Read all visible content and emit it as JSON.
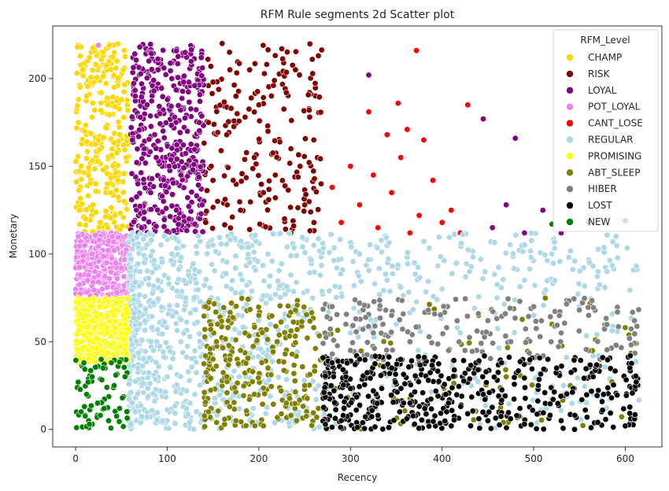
{
  "chart_data": {
    "type": "scatter",
    "title": "RFM Rule segments 2d Scatter plot",
    "xlabel": "Recency",
    "ylabel": "Monetary",
    "xlim": [
      -25,
      640
    ],
    "ylim": [
      -10,
      230
    ],
    "xticks": [
      0,
      100,
      200,
      300,
      400,
      500,
      600
    ],
    "yticks": [
      0,
      50,
      100,
      150,
      200
    ],
    "grid": false,
    "legend": {
      "title": "RFM_Level",
      "placement": "top-right"
    },
    "series": [
      {
        "name": "CHAMP",
        "color": "#FFD700",
        "region": {
          "x": [
            0,
            58
          ],
          "y": [
            112,
            220
          ]
        },
        "points": [
          [
            2,
            218
          ],
          [
            8,
            205
          ],
          [
            15,
            212
          ],
          [
            22,
            208
          ],
          [
            30,
            215
          ],
          [
            37,
            219
          ],
          [
            45,
            210
          ],
          [
            52,
            205
          ],
          [
            5,
            195
          ],
          [
            12,
            190
          ],
          [
            20,
            198
          ],
          [
            28,
            192
          ],
          [
            35,
            185
          ],
          [
            42,
            195
          ],
          [
            50,
            188
          ],
          [
            3,
            175
          ],
          [
            10,
            170
          ],
          [
            18,
            178
          ],
          [
            25,
            165
          ],
          [
            33,
            172
          ],
          [
            40,
            160
          ],
          [
            48,
            168
          ],
          [
            55,
            155
          ],
          [
            6,
            150
          ],
          [
            14,
            145
          ],
          [
            22,
            140
          ],
          [
            30,
            148
          ],
          [
            38,
            135
          ],
          [
            46,
            142
          ],
          [
            53,
            130
          ],
          [
            4,
            125
          ],
          [
            11,
            120
          ],
          [
            19,
            128
          ],
          [
            27,
            118
          ],
          [
            35,
            115
          ],
          [
            43,
            122
          ],
          [
            51,
            116
          ]
        ]
      },
      {
        "name": "RISK",
        "color": "#800000",
        "region": {
          "x": [
            140,
            270
          ],
          "y": [
            112,
            220
          ]
        },
        "points": [
          [
            160,
            220
          ],
          [
            168,
            215
          ],
          [
            190,
            205
          ],
          [
            225,
            217
          ],
          [
            240,
            205
          ],
          [
            265,
            213
          ],
          [
            150,
            198
          ],
          [
            175,
            190
          ],
          [
            200,
            185
          ],
          [
            230,
            192
          ],
          [
            255,
            182
          ],
          [
            145,
            175
          ],
          [
            165,
            168
          ],
          [
            185,
            178
          ],
          [
            210,
            170
          ],
          [
            235,
            160
          ],
          [
            260,
            165
          ],
          [
            148,
            150
          ],
          [
            172,
            142
          ],
          [
            195,
            155
          ],
          [
            218,
            145
          ],
          [
            245,
            150
          ],
          [
            268,
            140
          ],
          [
            155,
            130
          ],
          [
            180,
            125
          ],
          [
            205,
            135
          ],
          [
            228,
            120
          ],
          [
            250,
            128
          ],
          [
            142,
            118
          ],
          [
            190,
            114
          ],
          [
            238,
            116
          ]
        ]
      },
      {
        "name": "LOYAL",
        "color": "#800080",
        "region": {
          "x": [
            60,
            140
          ],
          "y": [
            112,
            220
          ]
        },
        "points": [
          [
            70,
            218
          ],
          [
            80,
            210
          ],
          [
            90,
            205
          ],
          [
            105,
            200
          ],
          [
            118,
            198
          ],
          [
            130,
            196
          ],
          [
            65,
            190
          ],
          [
            78,
            185
          ],
          [
            92,
            180
          ],
          [
            108,
            178
          ],
          [
            122,
            170
          ],
          [
            135,
            175
          ],
          [
            62,
            165
          ],
          [
            75,
            160
          ],
          [
            88,
            155
          ],
          [
            102,
            150
          ],
          [
            115,
            145
          ],
          [
            128,
            148
          ],
          [
            68,
            140
          ],
          [
            82,
            135
          ],
          [
            96,
            130
          ],
          [
            110,
            125
          ],
          [
            124,
            120
          ],
          [
            138,
            128
          ],
          [
            72,
            115
          ],
          [
            100,
            113
          ],
          [
            130,
            117
          ],
          [
            320,
            202
          ],
          [
            445,
            177
          ],
          [
            480,
            166
          ],
          [
            470,
            128
          ],
          [
            510,
            125
          ],
          [
            560,
            118
          ],
          [
            600,
            119
          ],
          [
            455,
            115
          ],
          [
            490,
            112
          ],
          [
            530,
            112
          ]
        ]
      },
      {
        "name": "POT_LOYAL",
        "color": "#EE82EE",
        "region": {
          "x": [
            0,
            58
          ],
          "y": [
            75,
            112
          ]
        },
        "points": [
          [
            25,
            219
          ],
          [
            3,
            110
          ],
          [
            10,
            105
          ],
          [
            18,
            100
          ],
          [
            26,
            108
          ],
          [
            34,
            95
          ],
          [
            42,
            102
          ],
          [
            50,
            92
          ],
          [
            5,
            88
          ],
          [
            13,
            85
          ],
          [
            21,
            90
          ],
          [
            29,
            80
          ],
          [
            37,
            86
          ],
          [
            45,
            78
          ],
          [
            53,
            82
          ],
          [
            8,
            96
          ],
          [
            16,
            76
          ],
          [
            40,
            110
          ],
          [
            55,
            100
          ]
        ]
      },
      {
        "name": "CANT_LOSE",
        "color": "#FF0000",
        "region": {
          "x": [
            270,
            430
          ],
          "y": [
            110,
            190
          ]
        },
        "points": [
          [
            372,
            216
          ],
          [
            352,
            186
          ],
          [
            362,
            171
          ],
          [
            428,
            185
          ],
          [
            320,
            181
          ],
          [
            340,
            168
          ],
          [
            380,
            165
          ],
          [
            300,
            150
          ],
          [
            325,
            145
          ],
          [
            355,
            155
          ],
          [
            390,
            142
          ],
          [
            280,
            138
          ],
          [
            310,
            128
          ],
          [
            345,
            135
          ],
          [
            375,
            122
          ],
          [
            410,
            125
          ],
          [
            290,
            118
          ],
          [
            330,
            115
          ],
          [
            365,
            112
          ],
          [
            400,
            118
          ],
          [
            420,
            112
          ]
        ]
      },
      {
        "name": "REGULAR",
        "color": "#ADD8E6",
        "region": {
          "x": [
            58,
            615
          ],
          "y": [
            0,
            112
          ]
        },
        "points": [
          [
            62,
            108
          ],
          [
            75,
            95
          ],
          [
            90,
            85
          ],
          [
            105,
            100
          ],
          [
            120,
            75
          ],
          [
            135,
            90
          ],
          [
            150,
            105
          ],
          [
            170,
            80
          ],
          [
            190,
            95
          ],
          [
            210,
            100
          ],
          [
            235,
            88
          ],
          [
            260,
            105
          ],
          [
            285,
            92
          ],
          [
            310,
            100
          ],
          [
            340,
            85
          ],
          [
            370,
            95
          ],
          [
            400,
            80
          ],
          [
            430,
            90
          ],
          [
            460,
            75
          ],
          [
            490,
            85
          ],
          [
            520,
            100
          ],
          [
            550,
            70
          ],
          [
            580,
            90
          ],
          [
            612,
            93
          ],
          [
            70,
            60
          ],
          [
            85,
            45
          ],
          [
            100,
            30
          ],
          [
            115,
            50
          ],
          [
            130,
            20
          ],
          [
            65,
            10
          ],
          [
            95,
            5
          ],
          [
            125,
            15
          ],
          [
            145,
            40
          ],
          [
            300,
            55
          ],
          [
            350,
            60
          ],
          [
            420,
            55
          ],
          [
            500,
            65
          ],
          [
            590,
            110
          ]
        ]
      },
      {
        "name": "PROMISING",
        "color": "#FFFF00",
        "region": {
          "x": [
            0,
            58
          ],
          "y": [
            38,
            75
          ]
        },
        "points": [
          [
            3,
            72
          ],
          [
            10,
            68
          ],
          [
            18,
            62
          ],
          [
            26,
            70
          ],
          [
            34,
            58
          ],
          [
            42,
            65
          ],
          [
            50,
            55
          ],
          [
            6,
            50
          ],
          [
            14,
            45
          ],
          [
            22,
            52
          ],
          [
            30,
            42
          ],
          [
            38,
            48
          ],
          [
            46,
            40
          ],
          [
            54,
            60
          ],
          [
            8,
            40
          ],
          [
            20,
            58
          ],
          [
            44,
            72
          ]
        ]
      },
      {
        "name": "ABT_SLEEP",
        "color": "#808000",
        "region": {
          "x": [
            140,
            615
          ],
          "y": [
            0,
            75
          ]
        },
        "points": [
          [
            142,
            70
          ],
          [
            155,
            60
          ],
          [
            170,
            72
          ],
          [
            185,
            55
          ],
          [
            200,
            65
          ],
          [
            220,
            50
          ],
          [
            240,
            68
          ],
          [
            260,
            58
          ],
          [
            150,
            40
          ],
          [
            165,
            30
          ],
          [
            180,
            45
          ],
          [
            195,
            20
          ],
          [
            210,
            35
          ],
          [
            230,
            15
          ],
          [
            250,
            25
          ],
          [
            270,
            40
          ],
          [
            145,
            10
          ],
          [
            175,
            5
          ],
          [
            205,
            2
          ],
          [
            235,
            8
          ],
          [
            265,
            12
          ],
          [
            440,
            65
          ],
          [
            520,
            60
          ],
          [
            560,
            45
          ],
          [
            600,
            58
          ],
          [
            612,
            49
          ],
          [
            470,
            30
          ],
          [
            540,
            25
          ]
        ]
      },
      {
        "name": "HIBER",
        "color": "#808080",
        "region": {
          "x": [
            270,
            615
          ],
          "y": [
            38,
            75
          ]
        },
        "points": [
          [
            280,
            70
          ],
          [
            295,
            60
          ],
          [
            310,
            72
          ],
          [
            325,
            55
          ],
          [
            345,
            65
          ],
          [
            365,
            50
          ],
          [
            385,
            68
          ],
          [
            405,
            58
          ],
          [
            425,
            45
          ],
          [
            450,
            62
          ],
          [
            475,
            50
          ],
          [
            500,
            70
          ],
          [
            530,
            55
          ],
          [
            560,
            65
          ],
          [
            590,
            48
          ],
          [
            610,
            62
          ],
          [
            300,
            45
          ],
          [
            340,
            42
          ],
          [
            380,
            40
          ],
          [
            440,
            38
          ]
        ]
      },
      {
        "name": "LOST",
        "color": "#000000",
        "region": {
          "x": [
            270,
            615
          ],
          "y": [
            0,
            42
          ]
        },
        "points": [
          [
            280,
            38
          ],
          [
            295,
            30
          ],
          [
            310,
            40
          ],
          [
            325,
            22
          ],
          [
            345,
            35
          ],
          [
            365,
            15
          ],
          [
            385,
            28
          ],
          [
            405,
            10
          ],
          [
            425,
            32
          ],
          [
            445,
            20
          ],
          [
            465,
            38
          ],
          [
            485,
            12
          ],
          [
            505,
            25
          ],
          [
            525,
            35
          ],
          [
            545,
            8
          ],
          [
            565,
            30
          ],
          [
            585,
            18
          ],
          [
            605,
            35
          ],
          [
            612,
            27
          ],
          [
            290,
            5
          ],
          [
            330,
            8
          ],
          [
            370,
            3
          ],
          [
            410,
            2
          ],
          [
            450,
            5
          ],
          [
            490,
            3
          ],
          [
            530,
            5
          ],
          [
            570,
            4
          ],
          [
            600,
            2
          ]
        ]
      },
      {
        "name": "NEW",
        "color": "#008000",
        "region": {
          "x": [
            0,
            58
          ],
          "y": [
            0,
            40
          ]
        },
        "points": [
          [
            1,
            1
          ],
          [
            6,
            10
          ],
          [
            12,
            20
          ],
          [
            18,
            30
          ],
          [
            24,
            15
          ],
          [
            30,
            35
          ],
          [
            36,
            5
          ],
          [
            42,
            25
          ],
          [
            48,
            12
          ],
          [
            54,
            30
          ],
          [
            9,
            38
          ],
          [
            15,
            3
          ],
          [
            27,
            8
          ],
          [
            39,
            38
          ],
          [
            51,
            18
          ],
          [
            520,
            117
          ]
        ]
      }
    ]
  }
}
